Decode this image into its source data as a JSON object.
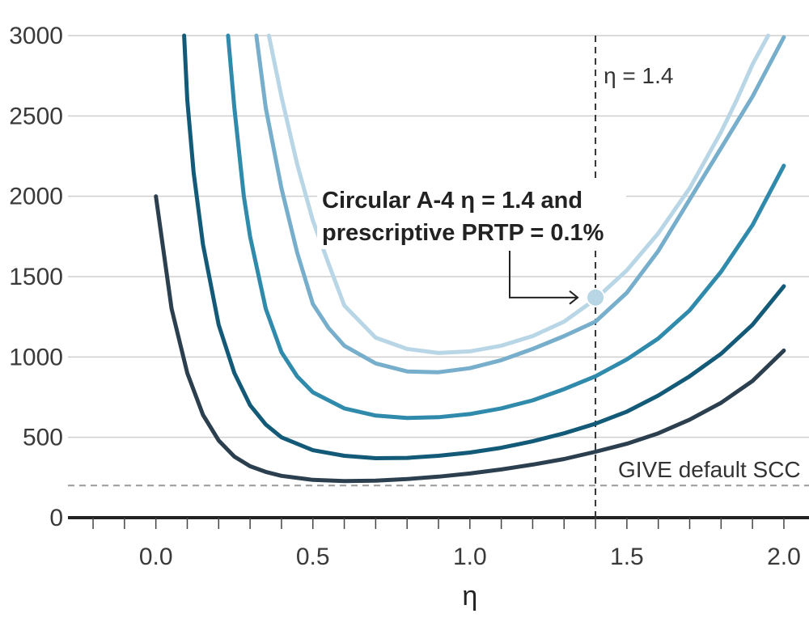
{
  "chart_data": {
    "type": "line",
    "title": "",
    "xlabel": "η",
    "ylabel": "",
    "xlim": [
      -0.28,
      2.08
    ],
    "ylim": [
      0,
      3000
    ],
    "xticks": [
      "0.0",
      "0.5",
      "1.0",
      "1.5",
      "2.0"
    ],
    "xtick_values": [
      0,
      0.5,
      1.0,
      1.5,
      2.0
    ],
    "yticks": [
      "0",
      "500",
      "1000",
      "1500",
      "2000",
      "2500",
      "3000"
    ],
    "ytick_values": [
      0,
      500,
      1000,
      1500,
      2000,
      2500,
      3000
    ],
    "grid": "horizontal",
    "series": [
      {
        "color": "#2b3f4f",
        "x": [
          0,
          0.05,
          0.1,
          0.15,
          0.2,
          0.25,
          0.3,
          0.35,
          0.4,
          0.5,
          0.6,
          0.7,
          0.8,
          0.9,
          1.0,
          1.1,
          1.2,
          1.3,
          1.4,
          1.5,
          1.6,
          1.7,
          1.8,
          1.9,
          2.0
        ],
        "y": [
          2000,
          1300,
          900,
          640,
          480,
          380,
          320,
          285,
          260,
          235,
          228,
          230,
          240,
          255,
          275,
          300,
          330,
          365,
          410,
          460,
          525,
          610,
          715,
          850,
          1040
        ]
      },
      {
        "color": "#135a78",
        "x": [
          0.09,
          0.1,
          0.12,
          0.15,
          0.2,
          0.25,
          0.3,
          0.35,
          0.4,
          0.5,
          0.6,
          0.7,
          0.8,
          0.9,
          1.0,
          1.1,
          1.2,
          1.3,
          1.4,
          1.5,
          1.6,
          1.7,
          1.8,
          1.9,
          2.0
        ],
        "y": [
          3000,
          2600,
          2150,
          1700,
          1200,
          900,
          700,
          580,
          500,
          420,
          385,
          370,
          372,
          385,
          405,
          435,
          475,
          525,
          585,
          660,
          760,
          880,
          1020,
          1200,
          1440
        ]
      },
      {
        "color": "#2f8aab",
        "x": [
          0.23,
          0.25,
          0.28,
          0.3,
          0.35,
          0.4,
          0.45,
          0.5,
          0.6,
          0.7,
          0.8,
          0.9,
          1.0,
          1.1,
          1.2,
          1.3,
          1.4,
          1.5,
          1.6,
          1.7,
          1.8,
          1.9,
          2.0
        ],
        "y": [
          3000,
          2550,
          2000,
          1750,
          1300,
          1030,
          880,
          780,
          680,
          635,
          620,
          625,
          645,
          680,
          730,
          800,
          880,
          985,
          1115,
          1290,
          1530,
          1820,
          2190
        ]
      },
      {
        "color": "#76aecb",
        "x": [
          0.32,
          0.35,
          0.4,
          0.45,
          0.5,
          0.55,
          0.6,
          0.7,
          0.8,
          0.9,
          1.0,
          1.1,
          1.2,
          1.3,
          1.4,
          1.5,
          1.6,
          1.7,
          1.8,
          1.9,
          2.0
        ],
        "y": [
          3000,
          2550,
          2050,
          1650,
          1330,
          1180,
          1070,
          960,
          910,
          905,
          930,
          980,
          1050,
          1130,
          1220,
          1400,
          1660,
          1980,
          2300,
          2620,
          2990
        ]
      },
      {
        "color": "#b8d6e6",
        "x": [
          0.36,
          0.4,
          0.45,
          0.5,
          0.55,
          0.6,
          0.7,
          0.8,
          0.9,
          1.0,
          1.1,
          1.2,
          1.3,
          1.4,
          1.5,
          1.6,
          1.7,
          1.8,
          1.85,
          1.9,
          1.95
        ],
        "y": [
          3000,
          2620,
          2200,
          1850,
          1580,
          1320,
          1120,
          1050,
          1025,
          1035,
          1070,
          1130,
          1220,
          1360,
          1540,
          1770,
          2050,
          2400,
          2600,
          2820,
          3000
        ]
      }
    ],
    "reference_line": {
      "value": 200,
      "label": "GIVE default SCC"
    },
    "vertical_line": {
      "value": 1.4,
      "label": "η = 1.4"
    },
    "highlight_point": {
      "x": 1.4,
      "y": 1370,
      "color": "#b8d6e6",
      "label_line1": "Circular A-4 η = 1.4 and",
      "label_line2": "prescriptive PRTP = 0.1%"
    }
  }
}
